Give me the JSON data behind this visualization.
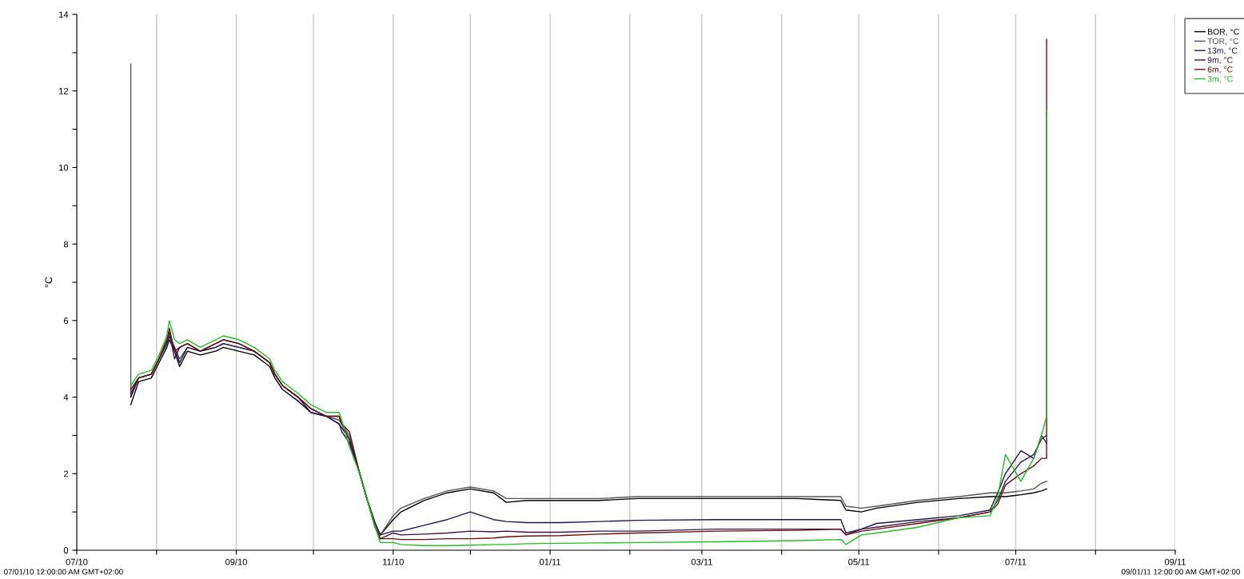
{
  "chart_data": {
    "type": "line",
    "ylabel": "°C",
    "xlim": [
      "2010-07-01",
      "2011-09-01"
    ],
    "xticks": [
      {
        "value": "2010-07-01",
        "label": "07/10"
      },
      {
        "value": "2010-08-01",
        "label": null
      },
      {
        "value": "2010-09-01",
        "label": "09/10"
      },
      {
        "value": "2010-10-01",
        "label": null
      },
      {
        "value": "2010-11-01",
        "label": "11/10"
      },
      {
        "value": "2010-12-01",
        "label": null
      },
      {
        "value": "2011-01-01",
        "label": "01/11"
      },
      {
        "value": "2011-02-01",
        "label": null
      },
      {
        "value": "2011-03-01",
        "label": "03/11"
      },
      {
        "value": "2011-04-01",
        "label": null
      },
      {
        "value": "2011-05-01",
        "label": "05/11"
      },
      {
        "value": "2011-06-01",
        "label": null
      },
      {
        "value": "2011-07-01",
        "label": "07/11"
      },
      {
        "value": "2011-08-01",
        "label": null
      },
      {
        "value": "2011-09-01",
        "label": "09/11"
      }
    ],
    "ylim": [
      0,
      14
    ],
    "yticks": [
      0,
      {
        "value": 1,
        "label": null
      },
      2,
      {
        "value": 3,
        "label": null
      },
      4,
      {
        "value": 5,
        "label": null
      },
      6,
      {
        "value": 7,
        "label": null
      },
      8,
      {
        "value": 9,
        "label": null
      },
      10,
      {
        "value": 11,
        "label": null
      },
      12,
      {
        "value": 13,
        "label": null
      },
      14
    ],
    "grid": "x",
    "legend": "top right",
    "marker": "none",
    "line_style": "solid",
    "annotations": [
      "07/01/10 12:00:00 AM GMT+02:00",
      "09/01/11 12:00:00 AM GMT+02:00"
    ],
    "series": [
      {
        "name": "BOR, °C",
        "color": "#000000",
        "x": [
          "2010-07-22",
          "2010-07-25",
          "2010-07-30",
          "2010-08-02",
          "2010-08-05",
          "2010-08-06",
          "2010-08-08",
          "2010-08-10",
          "2010-08-13",
          "2010-08-18",
          "2010-08-24",
          "2010-08-27",
          "2010-09-02",
          "2010-09-08",
          "2010-09-14",
          "2010-09-16",
          "2010-09-19",
          "2010-09-25",
          "2010-09-30",
          "2010-10-06",
          "2010-10-11",
          "2010-10-12",
          "2010-10-15",
          "2010-10-19",
          "2010-10-22",
          "2010-10-25",
          "2010-10-27",
          "2010-11-01",
          "2010-11-04",
          "2010-11-13",
          "2010-11-22",
          "2010-12-01",
          "2010-12-10",
          "2010-12-15",
          "2010-12-23",
          "2011-01-05",
          "2011-01-20",
          "2011-02-04",
          "2011-03-07",
          "2011-04-07",
          "2011-04-24",
          "2011-04-26",
          "2011-05-02",
          "2011-05-08",
          "2011-05-24",
          "2011-06-09",
          "2011-06-21",
          "2011-06-24",
          "2011-06-27",
          "2011-07-03",
          "2011-07-08",
          "2011-07-11",
          "2011-07-13"
        ],
        "values": [
          3.8,
          4.4,
          4.5,
          4.9,
          5.3,
          5.5,
          5.2,
          4.8,
          5.2,
          5.1,
          5.2,
          5.3,
          5.2,
          5.1,
          4.8,
          4.5,
          4.2,
          3.9,
          3.6,
          3.5,
          3.3,
          3.2,
          2.9,
          2.0,
          1.3,
          0.7,
          0.4,
          0.8,
          1.0,
          1.3,
          1.5,
          1.6,
          1.5,
          1.25,
          1.3,
          1.3,
          1.3,
          1.35,
          1.35,
          1.35,
          1.3,
          1.05,
          1.0,
          1.1,
          1.25,
          1.35,
          1.4,
          1.4,
          1.4,
          1.45,
          1.5,
          1.55,
          1.6
        ]
      },
      {
        "name": "TOR, °C",
        "color": "#555555",
        "x": [
          "2010-07-22",
          "2010-07-22",
          "2010-07-25",
          "2010-07-30",
          "2010-08-02",
          "2010-08-05",
          "2010-08-06",
          "2010-08-08",
          "2010-08-10",
          "2010-08-13",
          "2010-08-18",
          "2010-08-24",
          "2010-08-27",
          "2010-09-02",
          "2010-09-08",
          "2010-09-14",
          "2010-09-16",
          "2010-09-19",
          "2010-09-25",
          "2010-09-30",
          "2010-10-06",
          "2010-10-11",
          "2010-10-12",
          "2010-10-15",
          "2010-10-19",
          "2010-10-22",
          "2010-10-25",
          "2010-10-27",
          "2010-11-01",
          "2010-11-04",
          "2010-11-13",
          "2010-11-22",
          "2010-12-01",
          "2010-12-10",
          "2010-12-15",
          "2010-12-23",
          "2011-01-05",
          "2011-01-20",
          "2011-02-04",
          "2011-03-07",
          "2011-04-07",
          "2011-04-24",
          "2011-04-26",
          "2011-05-02",
          "2011-05-08",
          "2011-05-24",
          "2011-06-09",
          "2011-06-21",
          "2011-06-24",
          "2011-06-27",
          "2011-07-03",
          "2011-07-08",
          "2011-07-11",
          "2011-07-13"
        ],
        "values": [
          12.7,
          4.0,
          4.5,
          4.6,
          5.0,
          5.4,
          5.6,
          5.3,
          5.0,
          5.3,
          5.2,
          5.3,
          5.4,
          5.3,
          5.2,
          4.9,
          4.6,
          4.3,
          4.0,
          3.7,
          3.5,
          3.4,
          3.3,
          3.0,
          2.0,
          1.3,
          0.7,
          0.4,
          0.9,
          1.1,
          1.35,
          1.55,
          1.65,
          1.55,
          1.35,
          1.35,
          1.35,
          1.35,
          1.4,
          1.4,
          1.4,
          1.4,
          1.15,
          1.1,
          1.15,
          1.3,
          1.4,
          1.5,
          1.5,
          1.5,
          1.55,
          1.6,
          1.75,
          1.8
        ]
      },
      {
        "name": "13m, °C",
        "color": "#1a1a50",
        "x": [
          "2010-07-22",
          "2010-07-25",
          "2010-07-30",
          "2010-08-02",
          "2010-08-05",
          "2010-08-06",
          "2010-08-08",
          "2010-08-10",
          "2010-08-13",
          "2010-08-18",
          "2010-08-24",
          "2010-08-27",
          "2010-09-02",
          "2010-09-08",
          "2010-09-14",
          "2010-09-16",
          "2010-09-19",
          "2010-09-25",
          "2010-09-30",
          "2010-10-06",
          "2010-10-11",
          "2010-10-12",
          "2010-10-15",
          "2010-10-19",
          "2010-10-22",
          "2010-10-25",
          "2010-10-27",
          "2010-11-01",
          "2010-11-04",
          "2010-11-13",
          "2010-11-22",
          "2010-12-01",
          "2010-12-10",
          "2010-12-15",
          "2010-12-23",
          "2011-01-05",
          "2011-01-20",
          "2011-02-04",
          "2011-03-07",
          "2011-04-07",
          "2011-04-24",
          "2011-04-26",
          "2011-05-02",
          "2011-05-08",
          "2011-05-24",
          "2011-06-09",
          "2011-06-21",
          "2011-06-24",
          "2011-06-27",
          "2011-07-03",
          "2011-07-08",
          "2011-07-11",
          "2011-07-13"
        ],
        "values": [
          4.0,
          4.5,
          4.6,
          5.0,
          5.4,
          5.6,
          5.3,
          4.9,
          5.3,
          5.2,
          5.3,
          5.4,
          5.3,
          5.2,
          4.9,
          4.6,
          4.3,
          4.0,
          3.6,
          3.5,
          3.3,
          3.1,
          2.8,
          2.0,
          1.3,
          0.7,
          0.4,
          0.5,
          0.5,
          0.65,
          0.8,
          1.0,
          0.8,
          0.75,
          0.72,
          0.72,
          0.75,
          0.78,
          0.8,
          0.8,
          0.8,
          0.45,
          0.55,
          0.7,
          0.8,
          0.9,
          1.05,
          1.5,
          2.0,
          2.6,
          2.4,
          3.0,
          2.8
        ]
      },
      {
        "name": "9m, °C",
        "color": "#3c1446",
        "x": [
          "2010-07-22",
          "2010-07-25",
          "2010-07-30",
          "2010-08-02",
          "2010-08-05",
          "2010-08-06",
          "2010-08-08",
          "2010-08-10",
          "2010-08-13",
          "2010-08-18",
          "2010-08-24",
          "2010-08-27",
          "2010-09-02",
          "2010-09-08",
          "2010-09-14",
          "2010-09-16",
          "2010-09-19",
          "2010-09-25",
          "2010-09-30",
          "2010-10-06",
          "2010-10-11",
          "2010-10-12",
          "2010-10-15",
          "2010-10-19",
          "2010-10-22",
          "2010-10-25",
          "2010-10-27",
          "2010-11-01",
          "2010-11-04",
          "2010-11-13",
          "2010-11-22",
          "2010-12-01",
          "2010-12-10",
          "2010-12-15",
          "2010-12-23",
          "2011-01-05",
          "2011-01-20",
          "2011-02-04",
          "2011-03-07",
          "2011-04-07",
          "2011-04-24",
          "2011-04-26",
          "2011-05-02",
          "2011-05-08",
          "2011-05-24",
          "2011-06-09",
          "2011-06-21",
          "2011-06-24",
          "2011-06-27",
          "2011-07-03",
          "2011-07-08",
          "2011-07-11",
          "2011-07-13"
        ],
        "values": [
          4.1,
          4.5,
          4.6,
          5.0,
          5.5,
          5.7,
          5.0,
          5.3,
          5.4,
          5.2,
          5.4,
          5.5,
          5.4,
          5.2,
          4.9,
          4.6,
          4.3,
          4.0,
          3.7,
          3.5,
          3.5,
          3.3,
          2.9,
          2.0,
          1.3,
          0.6,
          0.3,
          0.45,
          0.4,
          0.42,
          0.45,
          0.5,
          0.48,
          0.5,
          0.47,
          0.47,
          0.5,
          0.5,
          0.55,
          0.55,
          0.55,
          0.4,
          0.55,
          0.6,
          0.75,
          0.85,
          1.0,
          1.3,
          1.8,
          2.3,
          2.5,
          2.9,
          3.0
        ]
      },
      {
        "name": "6m, °C",
        "color": "#6b1010",
        "x": [
          "2010-07-22",
          "2010-07-25",
          "2010-07-30",
          "2010-08-02",
          "2010-08-05",
          "2010-08-06",
          "2010-08-08",
          "2010-08-10",
          "2010-08-13",
          "2010-08-18",
          "2010-08-24",
          "2010-08-27",
          "2010-09-02",
          "2010-09-08",
          "2010-09-14",
          "2010-09-16",
          "2010-09-19",
          "2010-09-25",
          "2010-09-30",
          "2010-10-06",
          "2010-10-11",
          "2010-10-12",
          "2010-10-15",
          "2010-10-19",
          "2010-10-22",
          "2010-10-25",
          "2010-10-27",
          "2010-11-01",
          "2010-11-04",
          "2010-11-13",
          "2010-11-22",
          "2010-12-01",
          "2010-12-10",
          "2010-12-15",
          "2010-12-23",
          "2011-01-05",
          "2011-01-20",
          "2011-02-04",
          "2011-03-07",
          "2011-04-07",
          "2011-04-24",
          "2011-04-26",
          "2011-05-02",
          "2011-05-08",
          "2011-05-24",
          "2011-06-09",
          "2011-06-21",
          "2011-06-24",
          "2011-06-27",
          "2011-07-03",
          "2011-07-08",
          "2011-07-11",
          "2011-07-13",
          "2011-07-13"
        ],
        "values": [
          4.2,
          4.5,
          4.6,
          5.0,
          5.5,
          5.8,
          5.2,
          5.3,
          5.4,
          5.2,
          5.4,
          5.5,
          5.4,
          5.2,
          4.9,
          4.6,
          4.3,
          4.0,
          3.7,
          3.5,
          3.5,
          3.3,
          3.1,
          2.0,
          1.3,
          0.6,
          0.3,
          0.3,
          0.28,
          0.28,
          0.3,
          0.3,
          0.32,
          0.35,
          0.37,
          0.38,
          0.42,
          0.45,
          0.5,
          0.52,
          0.55,
          0.4,
          0.5,
          0.55,
          0.7,
          0.85,
          1.0,
          1.2,
          1.7,
          2.0,
          2.2,
          2.4,
          2.4,
          13.35
        ]
      },
      {
        "name": "3m, °C",
        "color": "#22c022",
        "x": [
          "2010-07-22",
          "2010-07-25",
          "2010-07-30",
          "2010-08-02",
          "2010-08-05",
          "2010-08-06",
          "2010-08-08",
          "2010-08-10",
          "2010-08-13",
          "2010-08-18",
          "2010-08-24",
          "2010-08-27",
          "2010-09-02",
          "2010-09-08",
          "2010-09-14",
          "2010-09-16",
          "2010-09-19",
          "2010-09-25",
          "2010-09-30",
          "2010-10-06",
          "2010-10-11",
          "2010-10-12",
          "2010-10-15",
          "2010-10-19",
          "2010-10-22",
          "2010-10-25",
          "2010-10-27",
          "2010-11-01",
          "2010-11-04",
          "2010-11-13",
          "2010-11-22",
          "2010-12-01",
          "2010-12-10",
          "2010-12-15",
          "2010-12-23",
          "2011-01-05",
          "2011-01-20",
          "2011-02-04",
          "2011-03-07",
          "2011-04-07",
          "2011-04-24",
          "2011-04-26",
          "2011-05-02",
          "2011-05-08",
          "2011-05-24",
          "2011-06-09",
          "2011-06-21",
          "2011-06-24",
          "2011-06-27",
          "2011-07-03",
          "2011-07-08",
          "2011-07-11",
          "2011-07-13",
          "2011-07-13"
        ],
        "values": [
          4.3,
          4.6,
          4.7,
          5.1,
          5.6,
          6.0,
          5.5,
          5.4,
          5.5,
          5.3,
          5.5,
          5.6,
          5.5,
          5.3,
          5.0,
          4.7,
          4.4,
          4.1,
          3.8,
          3.6,
          3.6,
          3.4,
          2.7,
          2.0,
          1.3,
          0.6,
          0.2,
          0.2,
          0.15,
          0.12,
          0.12,
          0.13,
          0.15,
          0.15,
          0.17,
          0.18,
          0.19,
          0.2,
          0.22,
          0.25,
          0.28,
          0.15,
          0.4,
          0.45,
          0.6,
          0.85,
          0.9,
          1.4,
          2.5,
          1.8,
          2.4,
          3.0,
          3.5,
          11.5
        ]
      }
    ]
  }
}
